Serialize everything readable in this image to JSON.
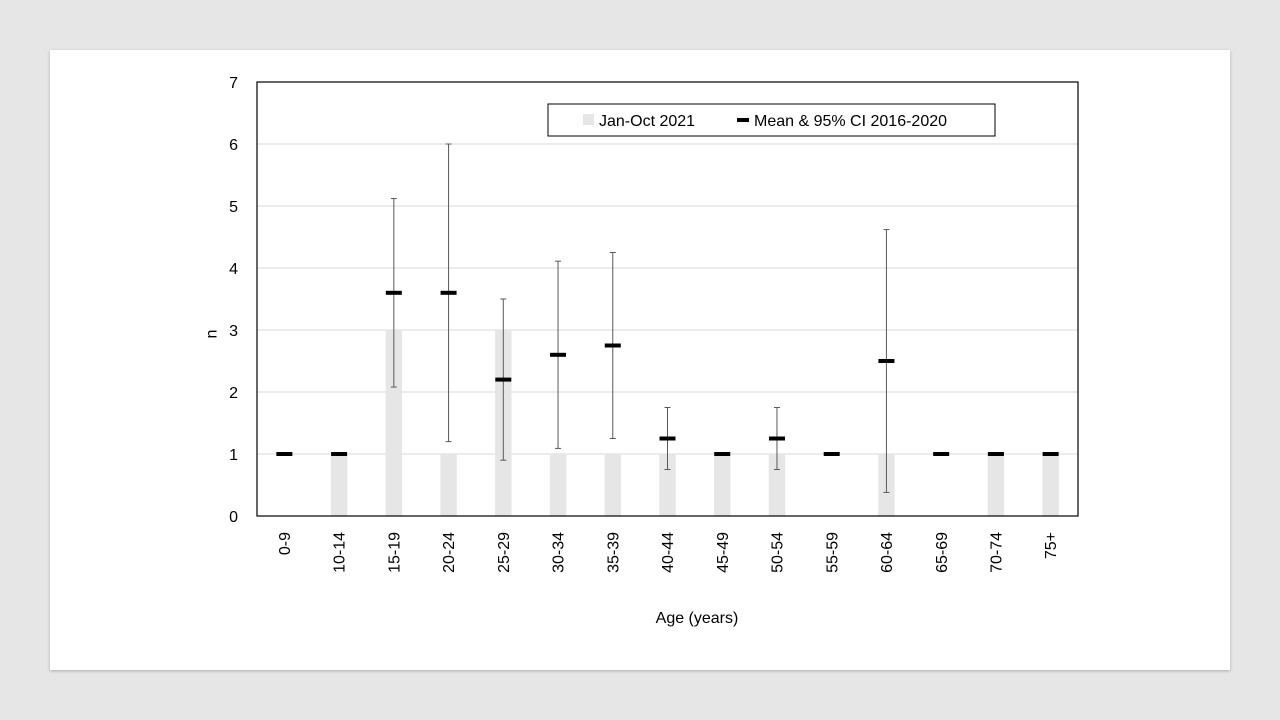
{
  "chart_data": {
    "type": "bar",
    "categories": [
      "0-9",
      "10-14",
      "15-19",
      "20-24",
      "25-29",
      "30-34",
      "35-39",
      "40-44",
      "45-49",
      "50-54",
      "55-59",
      "60-64",
      "65-69",
      "70-74",
      "75+"
    ],
    "series": [
      {
        "name": "Jan-Oct 2021",
        "type": "bar",
        "values": [
          0,
          1,
          3,
          1,
          3,
          1,
          1,
          1,
          1,
          1,
          0,
          1,
          0,
          1,
          1
        ],
        "color": "#e7e6e6"
      },
      {
        "name": "Mean & 95% CI 2016-2020",
        "type": "mean-ci",
        "mean": [
          1,
          1,
          3.6,
          3.6,
          2.2,
          2.6,
          2.75,
          1.25,
          1,
          1.25,
          1,
          2.5,
          1,
          1,
          1
        ],
        "ci_low": [
          1,
          1,
          2.08,
          1.2,
          0.9,
          1.09,
          1.25,
          0.75,
          1,
          0.75,
          1,
          0.38,
          1,
          1,
          1
        ],
        "ci_high": [
          1,
          1,
          5.12,
          6.0,
          3.5,
          4.11,
          4.25,
          1.75,
          1,
          1.75,
          1,
          4.62,
          1,
          1,
          1
        ],
        "color": "#000000"
      }
    ],
    "xlabel": "Age (years)",
    "ylabel": "n",
    "ylim": [
      0,
      7
    ],
    "yticks": [
      0,
      1,
      2,
      3,
      4,
      5,
      6,
      7
    ],
    "grid": true,
    "legend_position": "top-center"
  }
}
